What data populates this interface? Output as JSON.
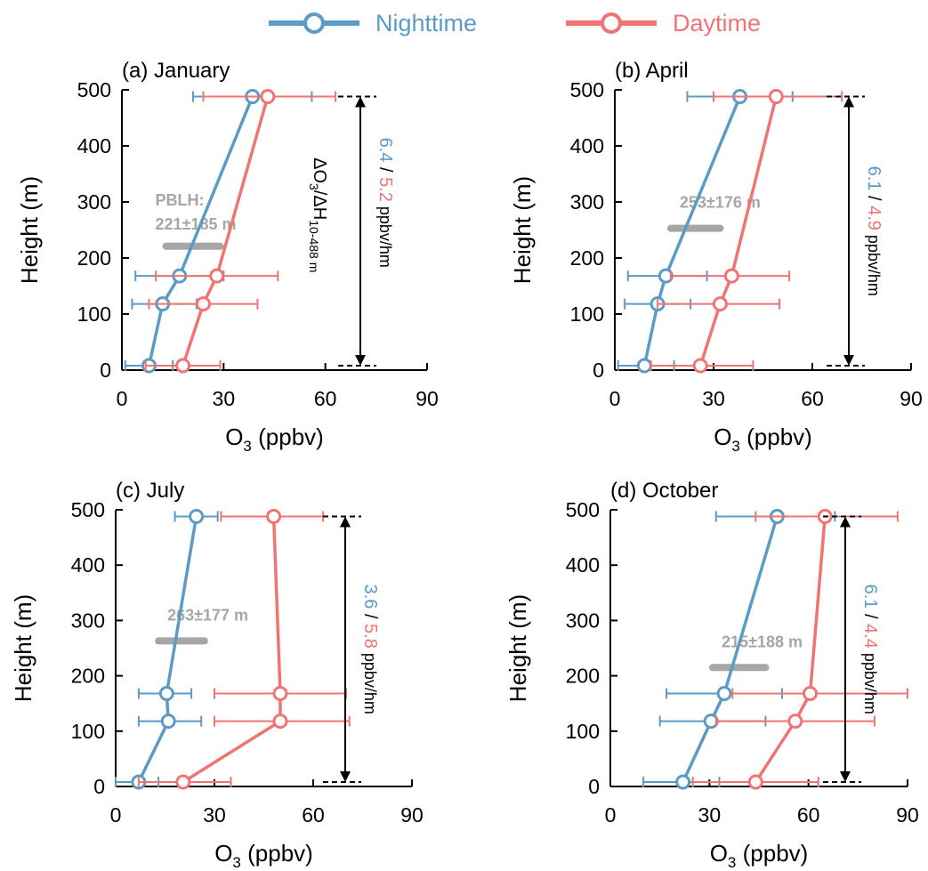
{
  "legend": {
    "nighttime": "Nighttime",
    "daytime": "Daytime"
  },
  "colors": {
    "night": "#5B9BC6",
    "day": "#F07472",
    "pblh": "#A6A6A6",
    "axis": "#000000"
  },
  "chart_data": [
    {
      "type": "line",
      "title": "(a) January",
      "xlabel": "O3 (ppbv)",
      "ylabel": "Height (m)",
      "xlim": [
        0,
        90
      ],
      "ylim": [
        0,
        500
      ],
      "xticks": [
        0,
        30,
        60,
        90
      ],
      "yticks": [
        0,
        100,
        200,
        300,
        400,
        500
      ],
      "grid": false,
      "heights": [
        8,
        118,
        168,
        488
      ],
      "series": [
        {
          "name": "Nighttime",
          "key": "night",
          "x": [
            8,
            12,
            17,
            38.5
          ],
          "xerr_low": [
            1,
            3,
            4,
            21
          ],
          "xerr_high": [
            15,
            22,
            30,
            56
          ]
        },
        {
          "name": "Daytime",
          "key": "day",
          "x": [
            18,
            24,
            28,
            43
          ],
          "xerr_low": [
            7,
            8,
            10,
            24
          ],
          "xerr_high": [
            29,
            40,
            46,
            63
          ]
        }
      ],
      "pblh": {
        "label_lines": [
          "PBLH:",
          "221±185 m"
        ],
        "height": 221,
        "x_range": [
          13,
          29
        ]
      },
      "gradient": {
        "prefix": "ΔO",
        "sub1": "3",
        "mid": "/ΔH",
        "sub2": "10-488 m",
        "night": "6.4",
        "day": "5.2",
        "sep": " / ",
        "unit": " ppbv/hm"
      },
      "arrow": {
        "from": 8,
        "to": 488
      }
    },
    {
      "type": "line",
      "title": "(b) April",
      "xlabel": "O3 (ppbv)",
      "ylabel": "Height (m)",
      "xlim": [
        0,
        90
      ],
      "ylim": [
        0,
        500
      ],
      "xticks": [
        0,
        30,
        60,
        90
      ],
      "yticks": [
        0,
        100,
        200,
        300,
        400,
        500
      ],
      "grid": false,
      "heights": [
        8,
        118,
        168,
        488
      ],
      "series": [
        {
          "name": "Nighttime",
          "key": "night",
          "x": [
            9,
            13,
            15.5,
            38
          ],
          "xerr_low": [
            1,
            3,
            4,
            22
          ],
          "xerr_high": [
            18,
            23,
            28,
            54
          ]
        },
        {
          "name": "Daytime",
          "key": "day",
          "x": [
            26,
            32,
            35.5,
            49
          ],
          "xerr_low": [
            11,
            13,
            17,
            30
          ],
          "xerr_high": [
            42,
            50,
            53,
            69
          ]
        }
      ],
      "pblh": {
        "label_lines": [
          "253±176 m"
        ],
        "height": 253,
        "x_range": [
          17,
          32
        ]
      },
      "gradient": {
        "night": "6.1",
        "day": "4.9",
        "sep": " / ",
        "unit": " ppbv/hm"
      },
      "arrow": {
        "from": 8,
        "to": 488
      }
    },
    {
      "type": "line",
      "title": "(c) July",
      "xlabel": "O3 (ppbv)",
      "ylabel": "Height (m)",
      "xlim": [
        0,
        90
      ],
      "ylim": [
        0,
        500
      ],
      "xticks": [
        0,
        30,
        60,
        90
      ],
      "yticks": [
        0,
        100,
        200,
        300,
        400,
        500
      ],
      "grid": false,
      "heights": [
        8,
        118,
        168,
        488
      ],
      "series": [
        {
          "name": "Nighttime",
          "key": "night",
          "x": [
            7,
            16,
            15.5,
            24.5
          ],
          "xerr_low": [
            0,
            7,
            7,
            18
          ],
          "xerr_high": [
            13,
            26,
            23,
            31
          ]
        },
        {
          "name": "Daytime",
          "key": "day",
          "x": [
            20.5,
            50,
            50,
            48
          ],
          "xerr_low": [
            7,
            30,
            30,
            32
          ],
          "xerr_high": [
            35,
            71,
            70,
            63
          ]
        }
      ],
      "pblh": {
        "label_lines": [
          "263±177 m"
        ],
        "height": 263,
        "x_range": [
          13,
          27
        ]
      },
      "gradient": {
        "night": "3.6",
        "day": "5.8",
        "sep": " / ",
        "unit": " ppbv/hm"
      },
      "arrow": {
        "from": 8,
        "to": 488
      }
    },
    {
      "type": "line",
      "title": "(d) October",
      "xlabel": "O3 (ppbv)",
      "ylabel": "Height (m)",
      "xlim": [
        0,
        90
      ],
      "ylim": [
        0,
        500
      ],
      "xticks": [
        0,
        30,
        60,
        90
      ],
      "yticks": [
        0,
        100,
        200,
        300,
        400,
        500
      ],
      "grid": false,
      "heights": [
        8,
        118,
        168,
        488
      ],
      "series": [
        {
          "name": "Nighttime",
          "key": "night",
          "x": [
            22,
            30.5,
            34.5,
            50.5
          ],
          "xerr_low": [
            10,
            15,
            17,
            32
          ],
          "xerr_high": [
            33,
            47,
            52,
            68
          ]
        },
        {
          "name": "Daytime",
          "key": "day",
          "x": [
            44,
            56,
            60.5,
            65
          ],
          "xerr_low": [
            25,
            32,
            37,
            44
          ],
          "xerr_high": [
            63,
            80,
            90,
            87
          ]
        }
      ],
      "pblh": {
        "label_lines": [
          "215±188 m"
        ],
        "height": 215,
        "x_range": [
          31,
          47
        ]
      },
      "gradient": {
        "night": "6.1",
        "day": "4.4",
        "sep": " / ",
        "unit": " ppbv/hm"
      },
      "arrow": {
        "from": 8,
        "to": 488
      }
    }
  ]
}
